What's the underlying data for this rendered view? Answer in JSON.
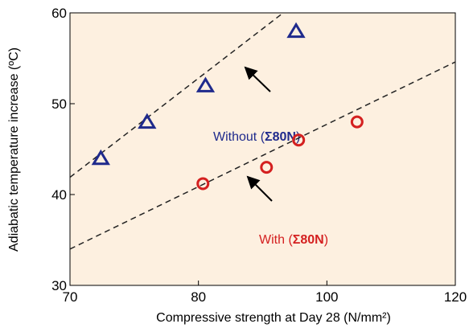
{
  "chart_data": {
    "type": "scatter",
    "xlabel": "Compressive strength at Day 28 (N/mm²)",
    "ylabel": "Adiabatic temperature increase (ºC)",
    "xlim": [
      70,
      120
    ],
    "xticks": [
      70,
      80,
      100,
      120
    ],
    "ylim": [
      30,
      60
    ],
    "yticks": [
      30,
      40,
      50,
      60
    ],
    "background": "#fdf0e0",
    "series": [
      {
        "color": "#1f2a8c",
        "marker": "triangle",
        "x": [
          72.4,
          76.0,
          81.1,
          95.2
        ],
        "values": [
          44,
          48,
          52,
          58
        ]
      },
      {
        "color": "#d42020",
        "marker": "circle",
        "x": [
          80.7,
          90.6,
          95.6,
          104.7
        ],
        "values": [
          41.2,
          43,
          46,
          48
        ]
      }
    ],
    "trend_lines": [
      {
        "color": "#222222",
        "x": [
          70,
          93.2
        ],
        "values": [
          41.9,
          60
        ]
      },
      {
        "color": "#222222",
        "x": [
          70,
          120
        ],
        "values": [
          34.0,
          54.6
        ]
      }
    ],
    "annotations": [
      {
        "parts": [
          "Without (",
          "Σ80N",
          ")"
        ],
        "color": "#1f2a8c"
      },
      {
        "parts": [
          "With (",
          "Σ80N",
          ")"
        ],
        "color": "#d42020"
      }
    ]
  }
}
